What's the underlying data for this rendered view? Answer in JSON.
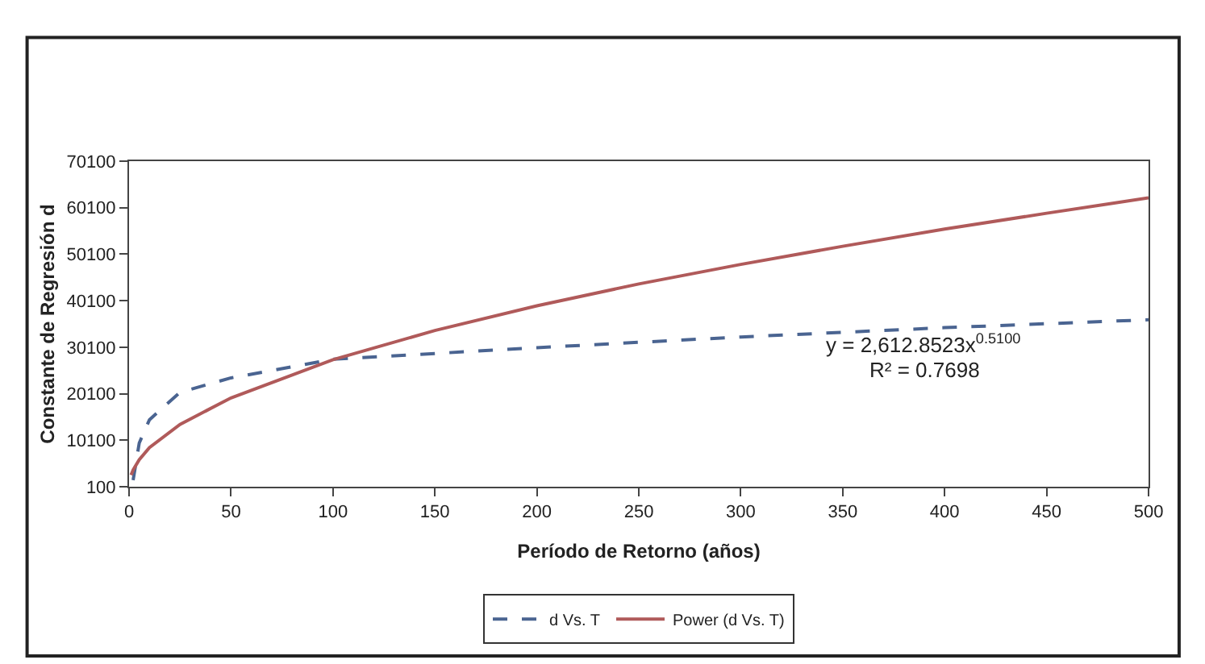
{
  "chart_data": {
    "type": "line",
    "xlabel": "Período de Retorno (años)",
    "ylabel": "Constante de Regresión d",
    "xlim": [
      0,
      500
    ],
    "xticks": [
      0,
      50,
      100,
      150,
      200,
      250,
      300,
      350,
      400,
      450,
      500
    ],
    "ylim": [
      100,
      70100
    ],
    "yticks": [
      100,
      10100,
      20100,
      30100,
      40100,
      50100,
      60100,
      70100
    ],
    "legend": "bottom",
    "marker": "none",
    "annotations": [
      "y = 2,612.8523x$^{0.5100}$",
      "R² = 0.7698"
    ],
    "series": [
      {
        "name": "d Vs. T",
        "color": "#4a6491",
        "line_style": "dashed",
        "x": [
          2,
          5,
          10,
          25,
          50,
          100,
          200,
          300,
          400,
          500
        ],
        "values": [
          1500,
          9500,
          14500,
          20400,
          23500,
          27500,
          30000,
          32300,
          34300,
          36000
        ]
      },
      {
        "name": "Power (d Vs. T)",
        "color": "#b05a5a",
        "line_style": "solid",
        "x": [
          1,
          2,
          5,
          10,
          25,
          50,
          100,
          150,
          200,
          250,
          300,
          350,
          400,
          450,
          500
        ],
        "values": [
          2600,
          3700,
          5900,
          8500,
          13500,
          19200,
          27400,
          33700,
          39000,
          43700,
          47900,
          51800,
          55500,
          58900,
          62200
        ]
      }
    ]
  }
}
